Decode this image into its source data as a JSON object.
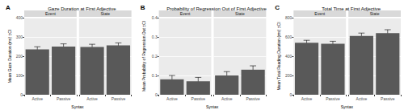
{
  "chart_data": [
    {
      "type": "bar",
      "panel": "A",
      "title": "Gaze Duration at First Adjective",
      "x_label": "Syntax",
      "y_label": "Mean Gaze Duration (ms) ±CI",
      "categories": [
        "Active",
        "Passive"
      ],
      "color": "#595959",
      "grid": true,
      "ylim": [
        0,
        400
      ],
      "yticks": [
        0,
        100,
        200,
        300,
        400
      ],
      "facets": [
        {
          "name": "Event",
          "values": [
            235,
            250
          ],
          "ci": [
            14,
            14
          ]
        },
        {
          "name": "State",
          "values": [
            248,
            256
          ],
          "ci": [
            14,
            13
          ]
        }
      ]
    },
    {
      "type": "bar",
      "panel": "B",
      "title": "Probability of Regression Out of First Adjective",
      "x_label": "Syntax",
      "y_label": "Mean Probability of Regression Out ±CI",
      "categories": [
        "Active",
        "Passive"
      ],
      "color": "#595959",
      "grid": true,
      "ylim": [
        0,
        0.4
      ],
      "yticks": [
        0,
        0.1,
        0.2,
        0.3,
        0.4
      ],
      "facets": [
        {
          "name": "Event",
          "values": [
            0.08,
            0.07
          ],
          "ci": [
            0.02,
            0.02
          ]
        },
        {
          "name": "State",
          "values": [
            0.1,
            0.13
          ],
          "ci": [
            0.02,
            0.02
          ]
        }
      ]
    },
    {
      "type": "bar",
      "panel": "C",
      "title": "Total Time at First Adjective",
      "x_label": "Syntax",
      "y_label": "Mean Total Reading Duration (ms) ±CI",
      "categories": [
        "Active",
        "Passive"
      ],
      "color": "#595959",
      "grid": true,
      "ylim": [
        0,
        800
      ],
      "yticks": [
        0,
        200,
        400,
        600,
        800
      ],
      "facets": [
        {
          "name": "Event",
          "values": [
            540,
            530
          ],
          "ci": [
            25,
            25
          ]
        },
        {
          "name": "State",
          "values": [
            610,
            640
          ],
          "ci": [
            30,
            35
          ]
        }
      ]
    }
  ]
}
